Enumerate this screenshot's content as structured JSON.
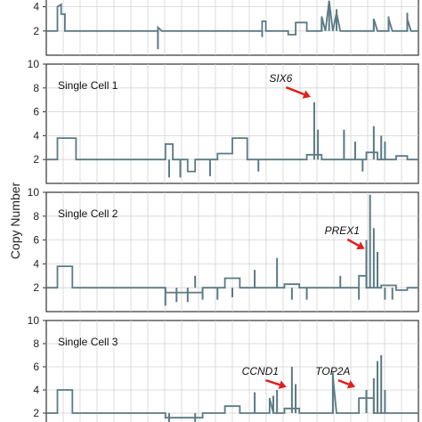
{
  "y_axis_label": "Copy Number",
  "colors": {
    "trace": "#5b7a84",
    "grid": "#d3d3d3",
    "axis": "#333333",
    "arrow": "#e02020"
  },
  "chart_data": [
    {
      "type": "line",
      "panel_label": "",
      "ylim": [
        0,
        5
      ],
      "yticks": [
        "2",
        "4"
      ],
      "grid": true,
      "segments": [
        [
          0,
          2
        ],
        [
          3,
          2
        ],
        [
          3,
          4
        ],
        [
          4,
          4.2
        ],
        [
          4,
          3.4
        ],
        [
          5,
          3.4
        ],
        [
          5,
          2
        ],
        [
          30,
          2
        ],
        [
          30,
          2.3
        ],
        [
          31,
          2
        ],
        [
          58,
          2
        ],
        [
          58,
          2.8
        ],
        [
          59,
          2.8
        ],
        [
          59,
          2
        ],
        [
          65,
          2
        ],
        [
          65,
          1.7
        ],
        [
          67,
          1.7
        ],
        [
          67,
          2.7
        ],
        [
          70,
          2.7
        ],
        [
          70,
          2
        ],
        [
          74,
          2
        ],
        [
          74,
          3.2
        ],
        [
          75,
          2
        ],
        [
          76,
          4.5
        ],
        [
          77,
          2
        ],
        [
          78,
          3.5
        ],
        [
          79,
          2
        ],
        [
          88,
          2
        ],
        [
          88,
          3
        ],
        [
          89,
          2
        ],
        [
          92,
          2
        ],
        [
          92,
          3
        ],
        [
          93,
          2
        ],
        [
          97,
          2
        ],
        [
          97,
          3
        ],
        [
          98,
          2
        ],
        [
          100,
          2
        ]
      ],
      "spikes": [
        [
          30,
          0.5
        ],
        [
          58,
          1.5
        ],
        [
          74,
          3
        ],
        [
          76,
          4.5
        ],
        [
          78,
          3.8
        ],
        [
          88,
          3
        ],
        [
          92,
          3.2
        ],
        [
          97,
          3.5
        ]
      ],
      "annotations": []
    },
    {
      "type": "line",
      "panel_label": "Single Cell 1",
      "ylim": [
        0,
        10
      ],
      "yticks": [
        "2",
        "4",
        "6",
        "8",
        "10"
      ],
      "grid": true,
      "segments": [
        [
          0,
          2
        ],
        [
          3,
          2
        ],
        [
          3,
          3.8
        ],
        [
          8,
          3.8
        ],
        [
          8,
          2
        ],
        [
          32,
          2
        ],
        [
          32,
          3.3
        ],
        [
          34,
          3.3
        ],
        [
          34,
          2
        ],
        [
          38,
          2
        ],
        [
          38,
          1
        ],
        [
          40,
          1
        ],
        [
          40,
          2
        ],
        [
          46,
          2
        ],
        [
          46,
          2.5
        ],
        [
          50,
          2.5
        ],
        [
          50,
          3.8
        ],
        [
          54,
          3.8
        ],
        [
          54,
          2
        ],
        [
          70,
          2
        ],
        [
          70,
          2.4
        ],
        [
          74,
          2.4
        ],
        [
          74,
          2
        ],
        [
          86,
          2
        ],
        [
          86,
          2.6
        ],
        [
          89,
          2.6
        ],
        [
          89,
          2
        ],
        [
          94,
          2
        ],
        [
          94,
          2.3
        ],
        [
          97,
          2.3
        ],
        [
          97,
          2
        ],
        [
          100,
          2
        ]
      ],
      "spikes": [
        [
          33,
          0.5
        ],
        [
          36,
          0.5
        ],
        [
          44,
          0.6
        ],
        [
          57,
          1
        ],
        [
          72,
          6.8
        ],
        [
          73,
          4.5
        ],
        [
          80,
          4.5
        ],
        [
          83,
          3.5
        ],
        [
          85,
          1
        ],
        [
          88,
          4.8
        ],
        [
          90,
          4
        ],
        [
          91,
          3.5
        ]
      ],
      "annotations": [
        {
          "label": "SIX6",
          "x": 72,
          "y": 6.8,
          "text_x_offset": -9,
          "text_y": 8.5
        }
      ]
    },
    {
      "type": "line",
      "panel_label": "Single Cell 2",
      "ylim": [
        0,
        10
      ],
      "yticks": [
        "2",
        "4",
        "6",
        "8",
        "10"
      ],
      "grid": true,
      "segments": [
        [
          0,
          2
        ],
        [
          3,
          2
        ],
        [
          3,
          3.8
        ],
        [
          7,
          3.8
        ],
        [
          7,
          2
        ],
        [
          32,
          2
        ],
        [
          32,
          1.6
        ],
        [
          42,
          1.6
        ],
        [
          42,
          2
        ],
        [
          48,
          2
        ],
        [
          48,
          2.8
        ],
        [
          52,
          2.8
        ],
        [
          52,
          2
        ],
        [
          64,
          2
        ],
        [
          64,
          2.3
        ],
        [
          68,
          2.3
        ],
        [
          68,
          2
        ],
        [
          84,
          2
        ],
        [
          84,
          3
        ],
        [
          86,
          3
        ],
        [
          86,
          2
        ],
        [
          90,
          2
        ],
        [
          90,
          2.2
        ],
        [
          94,
          2.2
        ],
        [
          94,
          1.8
        ],
        [
          97,
          1.8
        ],
        [
          97,
          2
        ],
        [
          100,
          2
        ]
      ],
      "spikes": [
        [
          32,
          0.5
        ],
        [
          35,
          0.8
        ],
        [
          38,
          0.8
        ],
        [
          40,
          3
        ],
        [
          42,
          1
        ],
        [
          46,
          1
        ],
        [
          50,
          1.2
        ],
        [
          56,
          3.5
        ],
        [
          62,
          4.5
        ],
        [
          66,
          1
        ],
        [
          70,
          1
        ],
        [
          79,
          3
        ],
        [
          84,
          1
        ],
        [
          86,
          6
        ],
        [
          87,
          9.8
        ],
        [
          88,
          7
        ],
        [
          89,
          5
        ],
        [
          91,
          1
        ],
        [
          93,
          1
        ]
      ],
      "annotations": [
        {
          "label": "PREX1",
          "x": 86.5,
          "y": 4.8,
          "text_x_offset": -7,
          "text_y": 6.5
        }
      ]
    },
    {
      "type": "line",
      "panel_label": "Single Cell 3",
      "ylim": [
        0,
        10
      ],
      "yticks": [
        "2",
        "4",
        "6",
        "8",
        "10"
      ],
      "grid": true,
      "segments": [
        [
          0,
          2
        ],
        [
          3,
          2
        ],
        [
          3,
          4
        ],
        [
          7,
          4
        ],
        [
          7,
          2
        ],
        [
          32,
          2
        ],
        [
          32,
          1.6
        ],
        [
          42,
          1.6
        ],
        [
          42,
          2
        ],
        [
          48,
          2
        ],
        [
          48,
          2.6
        ],
        [
          52,
          2.6
        ],
        [
          52,
          2
        ],
        [
          60,
          2
        ],
        [
          60,
          3.3
        ],
        [
          61,
          2
        ],
        [
          64,
          2
        ],
        [
          64,
          2.4
        ],
        [
          68,
          2.4
        ],
        [
          68,
          2
        ],
        [
          77,
          2
        ],
        [
          77,
          5.2
        ],
        [
          78,
          2
        ],
        [
          84,
          2
        ],
        [
          84,
          3.3
        ],
        [
          88,
          3.3
        ],
        [
          88,
          2
        ],
        [
          100,
          2
        ]
      ],
      "spikes": [
        [
          33,
          0.8
        ],
        [
          40,
          1
        ],
        [
          56,
          3.8
        ],
        [
          61,
          3.5
        ],
        [
          62,
          4
        ],
        [
          66,
          6
        ],
        [
          67,
          4.5
        ],
        [
          77,
          5.5
        ],
        [
          86,
          4
        ],
        [
          88,
          5
        ],
        [
          89,
          6.5
        ],
        [
          90,
          7
        ],
        [
          91,
          4
        ]
      ],
      "annotations": [
        {
          "label": "CCND1",
          "x": 65.5,
          "y": 3.8,
          "text_x_offset": -8,
          "text_y": 5.3
        },
        {
          "label": "TOP2A",
          "x": 84,
          "y": 3.8,
          "text_x_offset": -7,
          "text_y": 5.3
        }
      ]
    }
  ]
}
